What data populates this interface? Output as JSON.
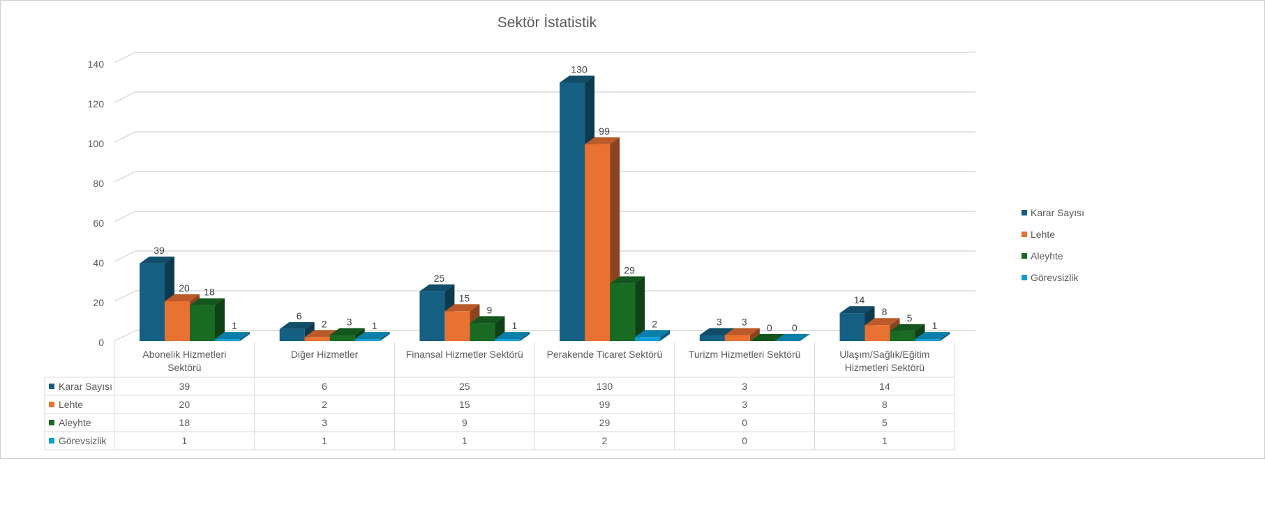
{
  "chart_data": {
    "type": "bar",
    "variant": "3d-clustered-column-with-data-table",
    "title": "Sektör İstatistik",
    "xlabel": "",
    "ylabel": "",
    "ylim": [
      0,
      140
    ],
    "yticks": [
      0,
      20,
      40,
      60,
      80,
      100,
      120,
      140
    ],
    "grid": true,
    "legend_position": "right",
    "categories": [
      "Abonelik Hizmetleri Sektörü",
      "Diğer Hizmetler",
      "Finansal Hizmetler Sektörü",
      "Perakende Ticaret Sektörü",
      "Turizm Hizmetleri Sektörü",
      "Ulaşım/Sağlık/Eğitim Hizmetleri Sektörü"
    ],
    "category_lines": [
      [
        "Abonelik Hizmetleri",
        "Sektörü"
      ],
      [
        "Diğer Hizmetler"
      ],
      [
        "Finansal Hizmetler Sektörü"
      ],
      [
        "Perakende Ticaret Sektörü"
      ],
      [
        "Turizm Hizmetleri Sektörü"
      ],
      [
        "Ulaşım/Sağlık/Eğitim",
        "Hizmetleri Sektörü"
      ]
    ],
    "series": [
      {
        "name": "Karar Sayısı",
        "color": "#156082",
        "values": [
          39,
          6,
          25,
          130,
          3,
          14
        ]
      },
      {
        "name": "Lehte",
        "color": "#E97132",
        "values": [
          20,
          2,
          15,
          99,
          3,
          8
        ]
      },
      {
        "name": "Aleyhte",
        "color": "#196B24",
        "values": [
          18,
          3,
          9,
          29,
          0,
          5
        ]
      },
      {
        "name": "Görevsizlik",
        "color": "#0F9ED5",
        "values": [
          1,
          1,
          1,
          2,
          0,
          1
        ]
      }
    ]
  }
}
